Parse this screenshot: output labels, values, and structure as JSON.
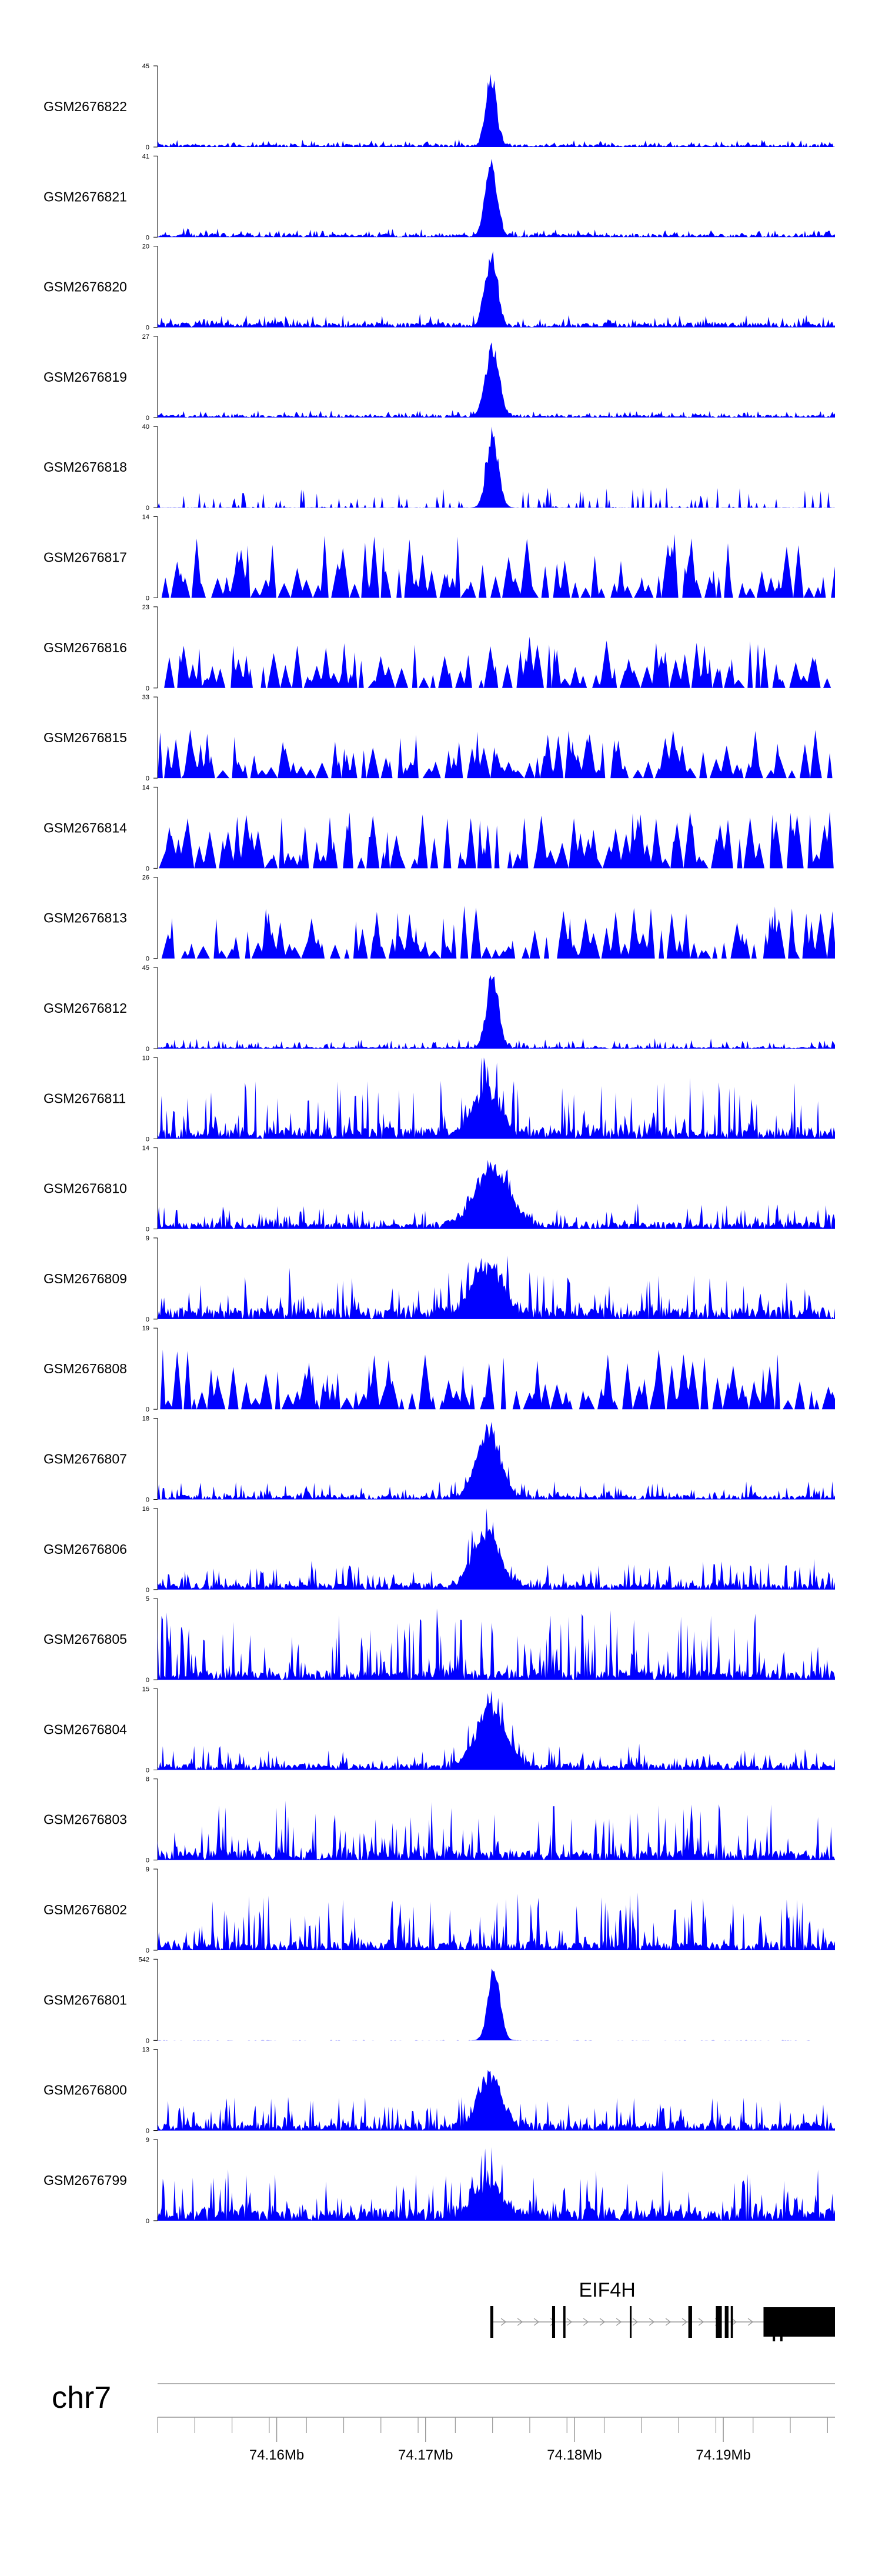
{
  "chart_data": {
    "type": "area",
    "title": "",
    "chromosome": "chr7",
    "region_mb": [
      74.152,
      74.1975
    ],
    "x_ticks_mb": [
      74.16,
      74.17,
      74.18,
      74.19
    ],
    "x_tick_labels": [
      "74.16Mb",
      "74.17Mb",
      "74.18Mb",
      "74.19Mb"
    ],
    "fill_color": "#0000ff",
    "tracks": [
      {
        "name": "GSM2676822",
        "ymax": 45,
        "ymax_label": "45",
        "ymin_label": "0",
        "base": 1.6,
        "noise": 3.0,
        "peak_mb": 74.1744,
        "peak": 44,
        "peak_width": 0.00035,
        "style": "dense",
        "seed": 11
      },
      {
        "name": "GSM2676821",
        "ymax": 41,
        "ymax_label": "41",
        "ymin_label": "0",
        "base": 1.6,
        "noise": 3.2,
        "peak_mb": 74.1744,
        "peak": 40,
        "peak_width": 0.0004,
        "style": "dense",
        "seed": 12
      },
      {
        "name": "GSM2676820",
        "ymax": 20,
        "ymax_label": "20",
        "ymin_label": "0",
        "base": 1.2,
        "noise": 2.4,
        "peak_mb": 74.1744,
        "peak": 19,
        "peak_width": 0.0004,
        "style": "dense",
        "seed": 13
      },
      {
        "name": "GSM2676819",
        "ymax": 27,
        "ymax_label": "27",
        "ymin_label": "0",
        "base": 0.9,
        "noise": 1.8,
        "peak_mb": 74.1745,
        "peak": 26,
        "peak_width": 0.00045,
        "style": "dense",
        "seed": 14
      },
      {
        "name": "GSM2676818",
        "ymax": 40,
        "ymax_label": "40",
        "ymin_label": "0",
        "base": 0.3,
        "noise": 10,
        "peak_mb": 74.1745,
        "peak": 39,
        "peak_width": 0.0004,
        "style": "medium",
        "seed": 15
      },
      {
        "name": "GSM2676817",
        "ymax": 14,
        "ymax_label": "14",
        "ymin_label": "0",
        "base": 0,
        "noise": 11,
        "peak_mb": null,
        "peak": 0,
        "peak_width": 0,
        "style": "sparse",
        "seed": 16
      },
      {
        "name": "GSM2676816",
        "ymax": 23,
        "ymax_label": "23",
        "ymin_label": "0",
        "base": 0,
        "noise": 15,
        "peak_mb": null,
        "peak": 0,
        "peak_width": 0,
        "style": "sparse",
        "seed": 17
      },
      {
        "name": "GSM2676815",
        "ymax": 33,
        "ymax_label": "33",
        "ymin_label": "0",
        "base": 0,
        "noise": 20,
        "peak_mb": null,
        "peak": 0,
        "peak_width": 0,
        "style": "sparse",
        "seed": 18
      },
      {
        "name": "GSM2676814",
        "ymax": 14,
        "ymax_label": "14",
        "ymin_label": "0",
        "base": 0,
        "noise": 10,
        "peak_mb": null,
        "peak": 0,
        "peak_width": 0,
        "style": "sparse",
        "seed": 19
      },
      {
        "name": "GSM2676813",
        "ymax": 26,
        "ymax_label": "26",
        "ymin_label": "0",
        "base": 0,
        "noise": 17,
        "peak_mb": null,
        "peak": 0,
        "peak_width": 0,
        "style": "sparse",
        "seed": 20
      },
      {
        "name": "GSM2676812",
        "ymax": 45,
        "ymax_label": "45",
        "ymin_label": "0",
        "base": 1.0,
        "noise": 5.0,
        "peak_mb": 74.1745,
        "peak": 44,
        "peak_width": 0.0004,
        "style": "dense",
        "seed": 21
      },
      {
        "name": "GSM2676811",
        "ymax": 10,
        "ymax_label": "10",
        "ymin_label": "0",
        "base": 1.5,
        "noise": 6.5,
        "peak_mb": 74.174,
        "peak": 6,
        "peak_width": 0.0009,
        "style": "dense",
        "seed": 22
      },
      {
        "name": "GSM2676810",
        "ymax": 14,
        "ymax_label": "14",
        "ymin_label": "0",
        "base": 1.2,
        "noise": 3.5,
        "peak_mb": 74.1745,
        "peak": 11,
        "peak_width": 0.0012,
        "style": "dense",
        "seed": 23
      },
      {
        "name": "GSM2676809",
        "ymax": 9,
        "ymax_label": "9",
        "ymin_label": "0",
        "base": 1.3,
        "noise": 4.5,
        "peak_mb": 74.1742,
        "peak": 6,
        "peak_width": 0.001,
        "style": "dense",
        "seed": 24
      },
      {
        "name": "GSM2676808",
        "ymax": 19,
        "ymax_label": "19",
        "ymin_label": "0",
        "base": 0,
        "noise": 14,
        "peak_mb": null,
        "peak": 0,
        "peak_width": 0,
        "style": "sparse",
        "seed": 25
      },
      {
        "name": "GSM2676807",
        "ymax": 18,
        "ymax_label": "18",
        "ymin_label": "0",
        "base": 1.0,
        "noise": 3.5,
        "peak_mb": 74.1742,
        "peak": 16,
        "peak_width": 0.0008,
        "style": "dense",
        "seed": 26
      },
      {
        "name": "GSM2676806",
        "ymax": 16,
        "ymax_label": "16",
        "ymin_label": "0",
        "base": 1.4,
        "noise": 5.0,
        "peak_mb": 74.1741,
        "peak": 12,
        "peak_width": 0.0009,
        "style": "dense",
        "seed": 27
      },
      {
        "name": "GSM2676805",
        "ymax": 5,
        "ymax_label": "5",
        "ymin_label": "0",
        "base": 0.6,
        "noise": 4.0,
        "peak_mb": null,
        "peak": 0,
        "peak_width": 0,
        "style": "dense",
        "seed": 28
      },
      {
        "name": "GSM2676804",
        "ymax": 15,
        "ymax_label": "15",
        "ymin_label": "0",
        "base": 1.2,
        "noise": 3.8,
        "peak_mb": 74.1744,
        "peak": 12,
        "peak_width": 0.001,
        "style": "dense",
        "seed": 29
      },
      {
        "name": "GSM2676803",
        "ymax": 8,
        "ymax_label": "8",
        "ymin_label": "0",
        "base": 1.0,
        "noise": 5.2,
        "peak_mb": null,
        "peak": 0,
        "peak_width": 0,
        "style": "dense",
        "seed": 30
      },
      {
        "name": "GSM2676802",
        "ymax": 9,
        "ymax_label": "9",
        "ymin_label": "0",
        "base": 0.9,
        "noise": 5.6,
        "peak_mb": null,
        "peak": 0,
        "peak_width": 0,
        "style": "dense",
        "seed": 31
      },
      {
        "name": "GSM2676801",
        "ymax": 542,
        "ymax_label": "542",
        "ymin_label": "0",
        "base": 0.6,
        "noise": 1.5,
        "peak_mb": 74.1746,
        "peak": 530,
        "peak_width": 0.0004,
        "style": "dense",
        "seed": 32
      },
      {
        "name": "GSM2676800",
        "ymax": 13,
        "ymax_label": "13",
        "ymin_label": "0",
        "base": 1.3,
        "noise": 4.8,
        "peak_mb": 74.1743,
        "peak": 9,
        "peak_width": 0.0008,
        "style": "dense",
        "seed": 33
      },
      {
        "name": "GSM2676799",
        "ymax": 9,
        "ymax_label": "9",
        "ymin_label": "0",
        "base": 1.4,
        "noise": 4.6,
        "peak_mb": 74.1741,
        "peak": 4,
        "peak_width": 0.001,
        "style": "dense",
        "seed": 34
      }
    ],
    "gene": {
      "name": "EIF4H",
      "strand": "+",
      "start_mb": 74.1744,
      "end_mb": 74.1975,
      "exons_mb": [
        [
          74.17435,
          74.17455
        ],
        [
          74.1785,
          74.1787
        ],
        [
          74.17925,
          74.1794
        ],
        [
          74.18372,
          74.18384
        ],
        [
          74.18765,
          74.1879
        ],
        [
          74.1895,
          74.1899
        ],
        [
          74.1901,
          74.19035
        ],
        [
          74.1905,
          74.19065
        ],
        [
          74.1927,
          74.1975
        ]
      ],
      "exon_marks_mb": [
        74.1934,
        74.1939
      ]
    }
  }
}
